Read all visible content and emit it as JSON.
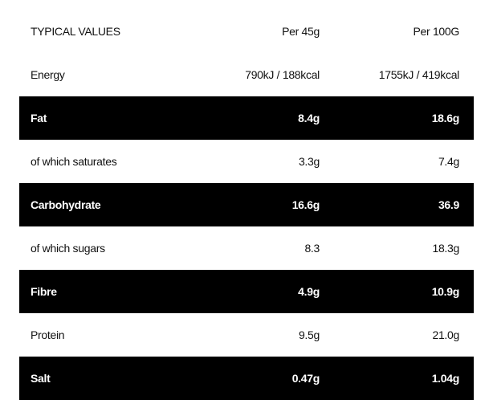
{
  "table": {
    "header": [
      "TYPICAL VALUES",
      "Per 45g",
      "Per 100G"
    ],
    "rows": [
      [
        "Energy",
        "790kJ / 188kcal",
        "1755kJ / 419kcal"
      ],
      [
        "Fat",
        "8.4g",
        "18.6g"
      ],
      [
        "of which saturates",
        "3.3g",
        "7.4g"
      ],
      [
        "Carbohydrate",
        "16.6g",
        "36.9"
      ],
      [
        "of which sugars",
        "8.3",
        "18.3g"
      ],
      [
        "Fibre",
        "4.9g",
        "10.9g"
      ],
      [
        "Protein",
        "9.5g",
        "21.0g"
      ],
      [
        "Salt",
        "0.47g",
        "1.04g"
      ]
    ]
  }
}
